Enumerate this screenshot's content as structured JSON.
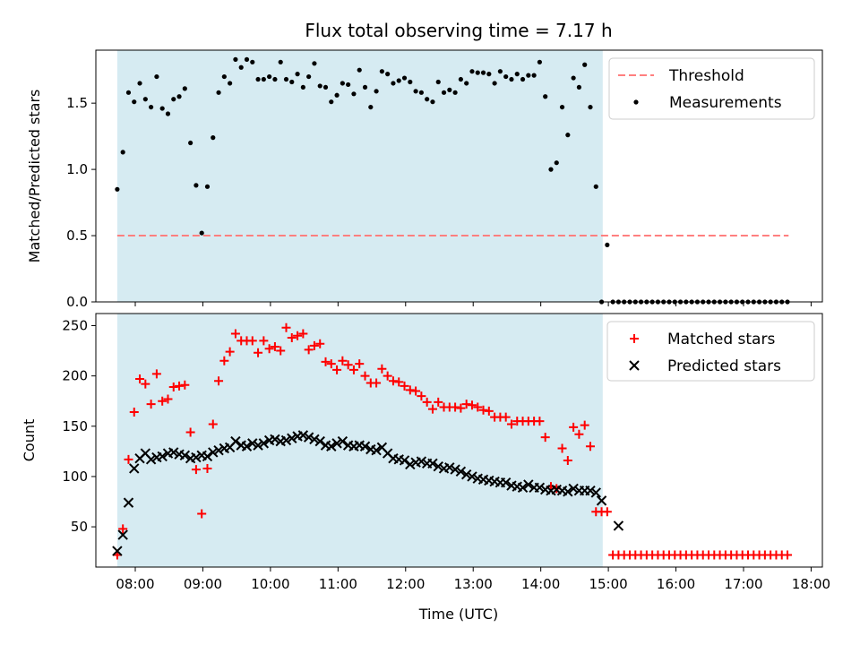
{
  "chart_data": {
    "type": "scatter",
    "title": "Flux total observing time = 7.17 h",
    "colors": {
      "shade": "#add8e6",
      "threshold": "#ff7f7f",
      "measurements": "#000000",
      "matched": "#ff0000",
      "predicted": "#000000"
    },
    "panels": [
      {
        "id": "ratio",
        "ylabel": "Matched/Predicted stars",
        "ylim": [
          0,
          1.9
        ],
        "yticks": [
          0.0,
          0.5,
          1.0,
          1.5
        ],
        "ytick_labels": [
          "0.0",
          "0.5",
          "1.0",
          "1.5"
        ],
        "shade": [
          "07:44",
          "14:55"
        ],
        "legend": {
          "position": "upper-right",
          "entries": [
            "Threshold",
            "Measurements"
          ]
        },
        "threshold": {
          "name": "Threshold",
          "y": 0.5,
          "x_range": [
            "07:44",
            "17:40"
          ]
        },
        "series": [
          {
            "name": "Measurements",
            "marker": "dot",
            "x": [
              "07:44",
              "07:49",
              "07:54",
              "07:59",
              "08:04",
              "08:09",
              "08:14",
              "08:19",
              "08:24",
              "08:29",
              "08:34",
              "08:39",
              "08:44",
              "08:49",
              "08:54",
              "08:59",
              "09:04",
              "09:09",
              "09:14",
              "09:19",
              "09:24",
              "09:29",
              "09:34",
              "09:39",
              "09:44",
              "09:49",
              "09:54",
              "09:59",
              "10:04",
              "10:09",
              "10:14",
              "10:19",
              "10:24",
              "10:29",
              "10:34",
              "10:39",
              "10:44",
              "10:49",
              "10:54",
              "10:59",
              "11:04",
              "11:09",
              "11:14",
              "11:19",
              "11:24",
              "11:29",
              "11:34",
              "11:39",
              "11:44",
              "11:49",
              "11:54",
              "11:59",
              "12:04",
              "12:09",
              "12:14",
              "12:19",
              "12:24",
              "12:29",
              "12:34",
              "12:39",
              "12:44",
              "12:49",
              "12:54",
              "12:59",
              "13:04",
              "13:09",
              "13:14",
              "13:19",
              "13:24",
              "13:29",
              "13:34",
              "13:39",
              "13:44",
              "13:49",
              "13:54",
              "13:59",
              "14:04",
              "14:09",
              "14:14",
              "14:19",
              "14:24",
              "14:29",
              "14:34",
              "14:39",
              "14:44",
              "14:49",
              "14:54",
              "14:59",
              "15:04",
              "15:09",
              "15:14",
              "15:19",
              "15:24",
              "15:29",
              "15:34",
              "15:39",
              "15:44",
              "15:49",
              "15:54",
              "15:59",
              "16:04",
              "16:09",
              "16:14",
              "16:19",
              "16:24",
              "16:29",
              "16:34",
              "16:39",
              "16:44",
              "16:49",
              "16:54",
              "16:59",
              "17:04",
              "17:09",
              "17:14",
              "17:19",
              "17:24",
              "17:29",
              "17:34",
              "17:39"
            ],
            "y": [
              0.85,
              1.13,
              1.58,
              1.51,
              1.65,
              1.53,
              1.47,
              1.7,
              1.46,
              1.42,
              1.53,
              1.55,
              1.61,
              1.2,
              0.88,
              0.52,
              0.87,
              1.24,
              1.58,
              1.7,
              1.65,
              1.83,
              1.77,
              1.83,
              1.81,
              1.68,
              1.68,
              1.7,
              1.68,
              1.81,
              1.68,
              1.66,
              1.72,
              1.62,
              1.7,
              1.8,
              1.63,
              1.62,
              1.51,
              1.56,
              1.65,
              1.64,
              1.57,
              1.75,
              1.62,
              1.47,
              1.59,
              1.74,
              1.72,
              1.65,
              1.67,
              1.69,
              1.66,
              1.59,
              1.58,
              1.53,
              1.51,
              1.66,
              1.58,
              1.6,
              1.58,
              1.68,
              1.65,
              1.74,
              1.73,
              1.73,
              1.72,
              1.65,
              1.74,
              1.7,
              1.68,
              1.72,
              1.68,
              1.71,
              1.71,
              1.81,
              1.55,
              1.0,
              1.05,
              1.47,
              1.26,
              1.69,
              1.62,
              1.79,
              1.47,
              0.87,
              0.0,
              0.43,
              0.0,
              0.0,
              0.0,
              0.0,
              0.0,
              0.0,
              0.0,
              0.0,
              0.0,
              0.0,
              0.0,
              0.0,
              0.0,
              0.0,
              0.0,
              0.0,
              0.0,
              0.0,
              0.0,
              0.0,
              0.0,
              0.0,
              0.0,
              0.0,
              0.0,
              0.0,
              0.0,
              0.0,
              0.0,
              0.0,
              0.0,
              0.0
            ]
          }
        ]
      },
      {
        "id": "counts",
        "ylabel": "Count",
        "ylim": [
          10,
          262
        ],
        "yticks": [
          50,
          100,
          150,
          200,
          250
        ],
        "ytick_labels": [
          "50",
          "100",
          "150",
          "200",
          "250"
        ],
        "shade": [
          "07:44",
          "14:55"
        ],
        "legend": {
          "position": "upper-right",
          "entries": [
            "Matched stars",
            "Predicted stars"
          ]
        },
        "series": [
          {
            "name": "Matched stars",
            "marker": "plus",
            "x": [
              "07:44",
              "07:49",
              "07:54",
              "07:59",
              "08:04",
              "08:09",
              "08:14",
              "08:19",
              "08:24",
              "08:29",
              "08:34",
              "08:39",
              "08:44",
              "08:49",
              "08:54",
              "08:59",
              "09:04",
              "09:09",
              "09:14",
              "09:19",
              "09:24",
              "09:29",
              "09:34",
              "09:39",
              "09:44",
              "09:49",
              "09:54",
              "09:59",
              "10:04",
              "10:09",
              "10:14",
              "10:19",
              "10:24",
              "10:29",
              "10:34",
              "10:39",
              "10:44",
              "10:49",
              "10:54",
              "10:59",
              "11:04",
              "11:09",
              "11:14",
              "11:19",
              "11:24",
              "11:29",
              "11:34",
              "11:39",
              "11:44",
              "11:49",
              "11:54",
              "11:59",
              "12:04",
              "12:09",
              "12:14",
              "12:19",
              "12:24",
              "12:29",
              "12:34",
              "12:39",
              "12:44",
              "12:49",
              "12:54",
              "12:59",
              "13:04",
              "13:09",
              "13:14",
              "13:19",
              "13:24",
              "13:29",
              "13:34",
              "13:39",
              "13:44",
              "13:49",
              "13:54",
              "13:59",
              "14:04",
              "14:09",
              "14:14",
              "14:19",
              "14:24",
              "14:29",
              "14:34",
              "14:39",
              "14:44",
              "14:49",
              "14:54",
              "14:59",
              "15:04",
              "15:09",
              "15:14",
              "15:19",
              "15:24",
              "15:29",
              "15:34",
              "15:39",
              "15:44",
              "15:49",
              "15:54",
              "15:59",
              "16:04",
              "16:09",
              "16:14",
              "16:19",
              "16:24",
              "16:29",
              "16:34",
              "16:39",
              "16:44",
              "16:49",
              "16:54",
              "16:59",
              "17:04",
              "17:09",
              "17:14",
              "17:19",
              "17:24",
              "17:29",
              "17:34",
              "17:39"
            ],
            "y": [
              22,
              48,
              117,
              164,
              197,
              192,
              172,
              202,
              175,
              177,
              189,
              190,
              191,
              144,
              107,
              63,
              108,
              152,
              195,
              215,
              224,
              242,
              235,
              235,
              235,
              223,
              235,
              227,
              229,
              225,
              248,
              238,
              240,
              242,
              226,
              230,
              232,
              214,
              212,
              206,
              215,
              211,
              206,
              212,
              200,
              193,
              193,
              207,
              200,
              195,
              194,
              190,
              186,
              185,
              180,
              174,
              167,
              174,
              169,
              169,
              169,
              168,
              172,
              171,
              169,
              166,
              165,
              159,
              159,
              159,
              152,
              155,
              155,
              155,
              155,
              155,
              139,
              90,
              88,
              128,
              116,
              149,
              142,
              151,
              130,
              65,
              65,
              65,
              22,
              22,
              22,
              22,
              22,
              22,
              22,
              22,
              22,
              22,
              22,
              22,
              22,
              22,
              22,
              22,
              22,
              22,
              22,
              22,
              22,
              22,
              22,
              22,
              22,
              22,
              22,
              22,
              22,
              22,
              22,
              22
            ]
          },
          {
            "name": "Predicted stars",
            "marker": "x",
            "x": [
              "07:44",
              "07:49",
              "07:54",
              "07:59",
              "08:04",
              "08:09",
              "08:14",
              "08:19",
              "08:24",
              "08:29",
              "08:34",
              "08:39",
              "08:44",
              "08:49",
              "08:54",
              "08:59",
              "09:04",
              "09:09",
              "09:14",
              "09:19",
              "09:24",
              "09:29",
              "09:34",
              "09:39",
              "09:44",
              "09:49",
              "09:54",
              "09:59",
              "10:04",
              "10:09",
              "10:14",
              "10:19",
              "10:24",
              "10:29",
              "10:34",
              "10:39",
              "10:44",
              "10:49",
              "10:54",
              "10:59",
              "11:04",
              "11:09",
              "11:14",
              "11:19",
              "11:24",
              "11:29",
              "11:34",
              "11:39",
              "11:44",
              "11:49",
              "11:54",
              "11:59",
              "12:04",
              "12:09",
              "12:14",
              "12:19",
              "12:24",
              "12:29",
              "12:34",
              "12:39",
              "12:44",
              "12:49",
              "12:54",
              "12:59",
              "13:04",
              "13:09",
              "13:14",
              "13:19",
              "13:24",
              "13:29",
              "13:34",
              "13:39",
              "13:44",
              "13:49",
              "13:54",
              "13:59",
              "14:04",
              "14:09",
              "14:14",
              "14:19",
              "14:24",
              "14:29",
              "14:34",
              "14:39",
              "14:44",
              "14:49",
              "14:54",
              "15:09"
            ],
            "y": [
              26,
              42,
              74,
              108,
              118,
              123,
              117,
              119,
              120,
              123,
              124,
              122,
              121,
              118,
              119,
              121,
              120,
              124,
              126,
              128,
              129,
              135,
              131,
              130,
              133,
              131,
              133,
              136,
              137,
              135,
              136,
              138,
              140,
              141,
              139,
              137,
              135,
              131,
              130,
              133,
              135,
              131,
              130,
              131,
              130,
              127,
              126,
              129,
              123,
              118,
              117,
              116,
              112,
              114,
              115,
              113,
              113,
              110,
              108,
              109,
              107,
              105,
              102,
              100,
              98,
              97,
              96,
              95,
              94,
              94,
              91,
              90,
              89,
              92,
              89,
              89,
              87,
              86,
              87,
              86,
              85,
              88,
              86,
              86,
              86,
              84,
              76,
              51
            ]
          }
        ]
      }
    ],
    "xlabel": "Time (UTC)",
    "xlim": [
      "07:25",
      "18:10"
    ],
    "xticks": [
      "08:00",
      "09:00",
      "10:00",
      "11:00",
      "12:00",
      "13:00",
      "14:00",
      "15:00",
      "16:00",
      "17:00",
      "18:00"
    ]
  }
}
